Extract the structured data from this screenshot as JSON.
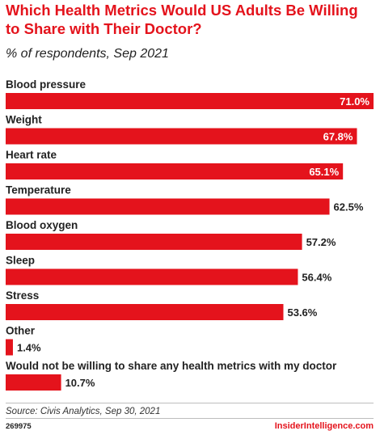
{
  "title": "Which Health Metrics Would US Adults Be Willing to Share with Their Doctor?",
  "subtitle": "% of respondents, Sep 2021",
  "source": "Source: Civis Analytics, Sep 30, 2021",
  "chart_id": "269975",
  "brand": "InsiderIntelligence.com",
  "colors": {
    "accent": "#e4131c",
    "bar": "#e4131c",
    "bar_label_inside": "#ffffff",
    "bar_label_outside": "#222222",
    "text": "#222222"
  },
  "chart_data": {
    "type": "bar",
    "orientation": "horizontal",
    "title": "Which Health Metrics Would US Adults Be Willing to Share with Their Doctor?",
    "subtitle": "% of respondents, Sep 2021",
    "xlabel": "",
    "ylabel": "",
    "grid": false,
    "legend": "none",
    "xlim": [
      0,
      71
    ],
    "categories": [
      "Blood pressure",
      "Weight",
      "Heart rate",
      "Temperature",
      "Blood oxygen",
      "Sleep",
      "Stress",
      "Other",
      "Would not be willing to share any health metrics with my doctor"
    ],
    "values": [
      71.0,
      67.8,
      65.1,
      62.5,
      57.2,
      56.4,
      53.6,
      1.4,
      10.7
    ],
    "data_labels": [
      "71.0%",
      "67.8%",
      "65.1%",
      "62.5%",
      "57.2%",
      "56.4%",
      "53.6%",
      "1.4%",
      "10.7%"
    ],
    "label_inside": [
      true,
      true,
      true,
      false,
      false,
      false,
      false,
      false,
      false
    ]
  }
}
